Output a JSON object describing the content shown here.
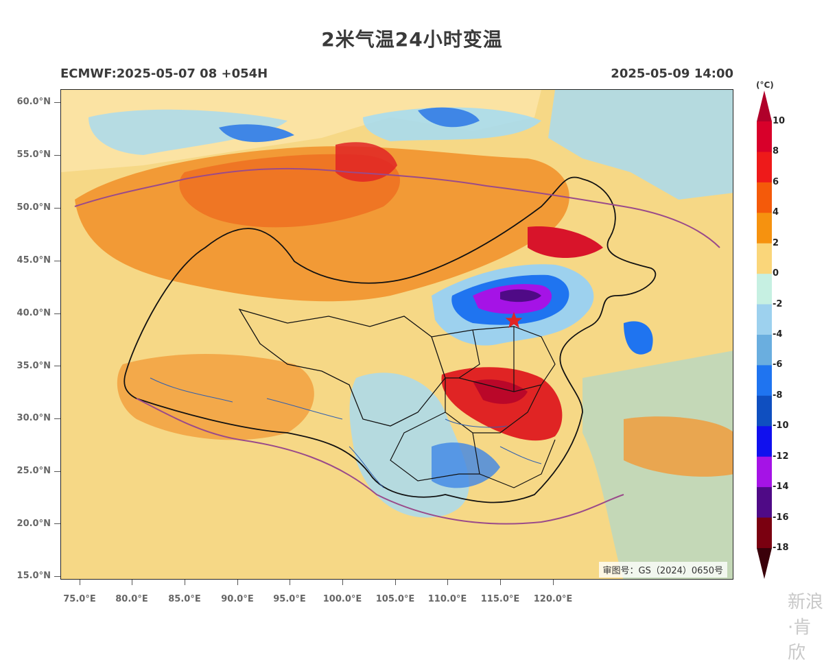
{
  "title": "2米气温24小时变温",
  "subtitle_left": "ECMWF:2025-05-07 08 +054H",
  "subtitle_right": "2025-05-09 14:00",
  "map": {
    "review_number": "审图号：GS（2024）0650号",
    "marker": "star",
    "lat_ticks": [
      "60.0°N",
      "55.0°N",
      "50.0°N",
      "45.0°N",
      "40.0°N",
      "35.0°N",
      "30.0°N",
      "25.0°N",
      "20.0°N",
      "15.0°N"
    ],
    "lon_ticks": [
      "75.0°E",
      "80.0°E",
      "85.0°E",
      "90.0°E",
      "95.0°E",
      "100.0°E",
      "105.0°E",
      "110.0°E",
      "115.0°E",
      "120.0°E"
    ]
  },
  "colorbar": {
    "unit": "(°C)",
    "labels": [
      "10",
      "8",
      "6",
      "4",
      "2",
      "0",
      "-2",
      "-4",
      "-6",
      "-8",
      "-10",
      "-12",
      "-14",
      "-16",
      "-18"
    ],
    "colors": [
      "#b0002a",
      "#d8002a",
      "#ee1a1a",
      "#f45a0a",
      "#f6920f",
      "#fad67a",
      "#c6f0e2",
      "#9dd1ee",
      "#6aaedf",
      "#1f74f0",
      "#0f4fc0",
      "#1010ee",
      "#a513e6",
      "#4f0a86",
      "#7a0010",
      "#3a000a"
    ]
  },
  "watermark_text": "新浪·肯欣"
}
